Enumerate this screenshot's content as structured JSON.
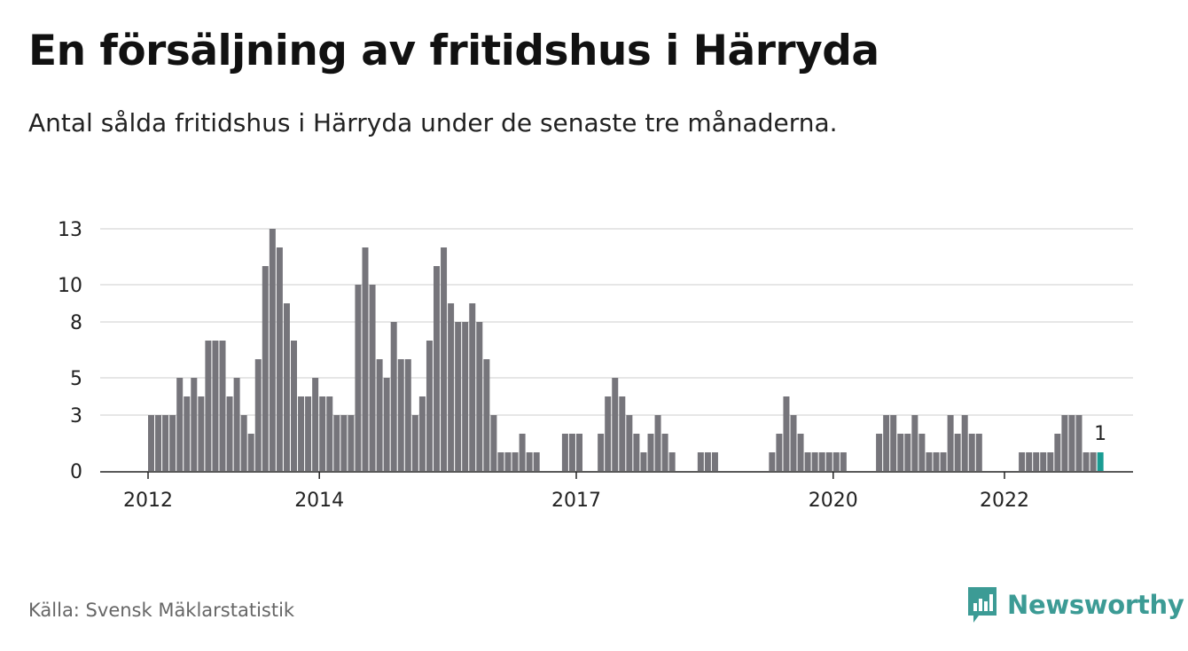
{
  "header": {
    "title": "En försäljning av fritidshus i Härryda",
    "subtitle": "Antal sålda fritidshus i Härryda under de senaste tre månaderna."
  },
  "footer": {
    "source": "Källa: Svensk Mäklarstatistik",
    "brand": "Newsworthy"
  },
  "colors": {
    "bar": "#76757b",
    "highlight": "#1a9c93",
    "brand": "#3c9b95",
    "grid": "#dddddd",
    "axis": "#222222"
  },
  "chart_data": {
    "type": "bar",
    "title": "En försäljning av fritidshus i Härryda",
    "ylim": [
      0,
      13
    ],
    "y_ticks": [
      0,
      3,
      5,
      8,
      10,
      13
    ],
    "x_ticks": [
      {
        "label": "2012",
        "month_index": 0
      },
      {
        "label": "2014",
        "month_index": 24
      },
      {
        "label": "2017",
        "month_index": 60
      },
      {
        "label": "2020",
        "month_index": 96
      },
      {
        "label": "2022",
        "month_index": 120
      }
    ],
    "grid": true,
    "x_start": "2012-01",
    "x_end": "2022-08",
    "values": [
      3,
      3,
      3,
      3,
      5,
      4,
      5,
      4,
      7,
      7,
      7,
      4,
      5,
      3,
      2,
      6,
      11,
      13,
      12,
      9,
      7,
      4,
      4,
      5,
      4,
      4,
      3,
      3,
      3,
      10,
      12,
      10,
      6,
      5,
      8,
      6,
      6,
      3,
      4,
      7,
      11,
      12,
      9,
      8,
      8,
      9,
      8,
      6,
      3,
      1,
      1,
      1,
      2,
      1,
      1,
      0,
      0,
      0,
      2,
      2,
      2,
      0,
      0,
      2,
      4,
      5,
      4,
      3,
      2,
      1,
      2,
      3,
      2,
      1,
      0,
      0,
      0,
      1,
      1,
      1,
      0,
      0,
      0,
      0,
      0,
      0,
      0,
      1,
      2,
      4,
      3,
      2,
      1,
      1,
      1,
      1,
      1,
      1,
      0,
      0,
      0,
      0,
      2,
      3,
      3,
      2,
      2,
      3,
      2,
      1,
      1,
      1,
      3,
      2,
      3,
      2,
      2,
      0,
      0,
      0,
      0,
      0,
      1,
      1,
      1,
      1,
      1,
      2,
      3,
      3,
      3,
      1,
      1,
      1
    ],
    "highlight_last": true,
    "annotation": "1"
  }
}
